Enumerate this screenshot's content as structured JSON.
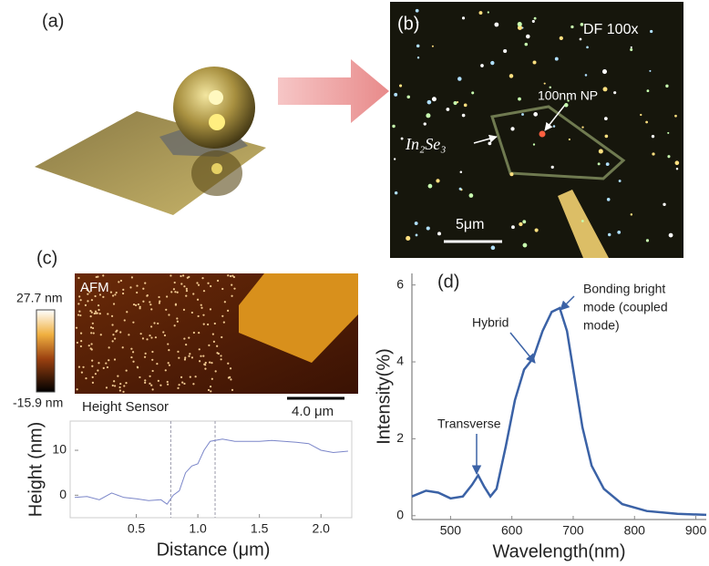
{
  "labels": {
    "a": "(a)",
    "b": "(b)",
    "c": "(c)",
    "d": "(d)",
    "df": "DF 100x",
    "np": "100nm NP",
    "flake": "In₂Se₃",
    "scale_b": "5μm",
    "afm": "AFM",
    "cbar_max": "27.7 nm",
    "cbar_min": "-15.9 nm",
    "sensor": "Height Sensor",
    "scale_c": "4.0 μm"
  },
  "chart_data": [
    {
      "type": "line",
      "xlabel": "Distance (μm)",
      "ylabel": "Height (nm)",
      "color": "#7b86c9",
      "x": [
        0,
        0.1,
        0.2,
        0.3,
        0.4,
        0.5,
        0.6,
        0.7,
        0.75,
        0.8,
        0.85,
        0.9,
        0.95,
        1.0,
        1.05,
        1.1,
        1.2,
        1.3,
        1.4,
        1.5,
        1.6,
        1.7,
        1.8,
        1.9,
        2.0,
        2.1,
        2.22
      ],
      "values": [
        -0.5,
        -0.3,
        -1,
        0.5,
        -0.5,
        -0.8,
        -1.2,
        -1,
        -2,
        0,
        1,
        5,
        6.5,
        7,
        10,
        12,
        12.5,
        12,
        12,
        12,
        12.2,
        12,
        11.8,
        11.5,
        10,
        9.5,
        9.8
      ],
      "markers": [
        0.78,
        1.14
      ],
      "xlim": [
        0,
        2.25
      ],
      "ylim": [
        -5,
        16.5
      ],
      "xticks": [
        0.5,
        {
          "value": 1,
          "label": "1.0"
        },
        1.5,
        {
          "value": 2,
          "label": "2.0"
        }
      ],
      "yticks": [
        0,
        10
      ]
    },
    {
      "type": "line",
      "xlabel": "Wavelength(nm)",
      "ylabel": "Intensity(%)",
      "color": "#3b62a6",
      "x": [
        437,
        460,
        480,
        500,
        520,
        535,
        545,
        555,
        565,
        575,
        590,
        605,
        620,
        635,
        650,
        665,
        678,
        690,
        700,
        715,
        730,
        750,
        780,
        820,
        870,
        917
      ],
      "values": [
        0.5,
        0.65,
        0.6,
        0.45,
        0.5,
        0.8,
        1.05,
        0.75,
        0.5,
        0.7,
        1.8,
        3.0,
        3.8,
        4.1,
        4.8,
        5.3,
        5.4,
        4.8,
        3.8,
        2.3,
        1.3,
        0.7,
        0.3,
        0.12,
        0.05,
        0.02
      ],
      "xlim": [
        437,
        917
      ],
      "ylim": [
        -0.1,
        6.3
      ],
      "xticks": [
        500,
        600,
        700,
        800,
        900
      ],
      "yticks": [
        0,
        2,
        4,
        6
      ],
      "annotations": [
        {
          "lines": [
            "Transverse"
          ]
        },
        {
          "lines": [
            "Hybrid"
          ]
        },
        {
          "lines": [
            "Bonding bright",
            "mode (coupled",
            "mode)"
          ]
        }
      ]
    }
  ]
}
